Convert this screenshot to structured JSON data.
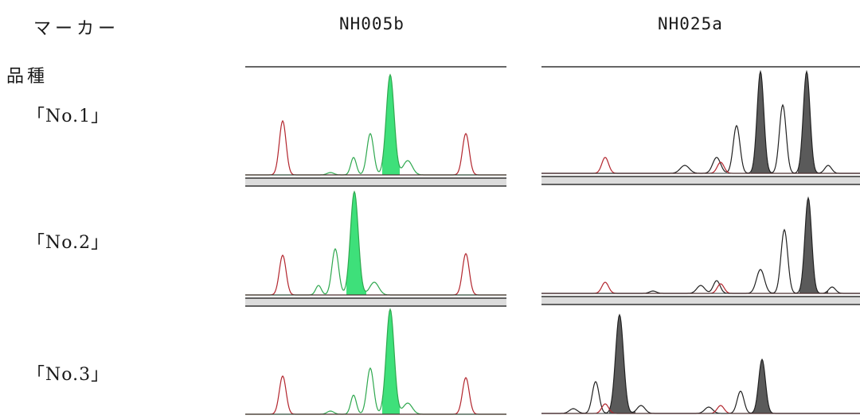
{
  "header": {
    "marker_label": "マーカー",
    "variety_label": "品種"
  },
  "markers": [
    "NH005b",
    "NH025a"
  ],
  "varieties": [
    "「No.1」",
    "「No.2」",
    "「No.3」"
  ],
  "colors": {
    "nh005b_peak_fill": "#3ee07a",
    "nh005b_trace": "#2fa84f",
    "nh025a_peak_fill": "#5a5a5a",
    "size_standard": "#b3262e",
    "baseline": "#333333"
  },
  "chart_data": {
    "type": "electropherogram",
    "title": "",
    "columns": [
      "NH005b",
      "NH025a"
    ],
    "rows": [
      "「No.1」",
      "「No.2」",
      "「No.3」"
    ]
  }
}
